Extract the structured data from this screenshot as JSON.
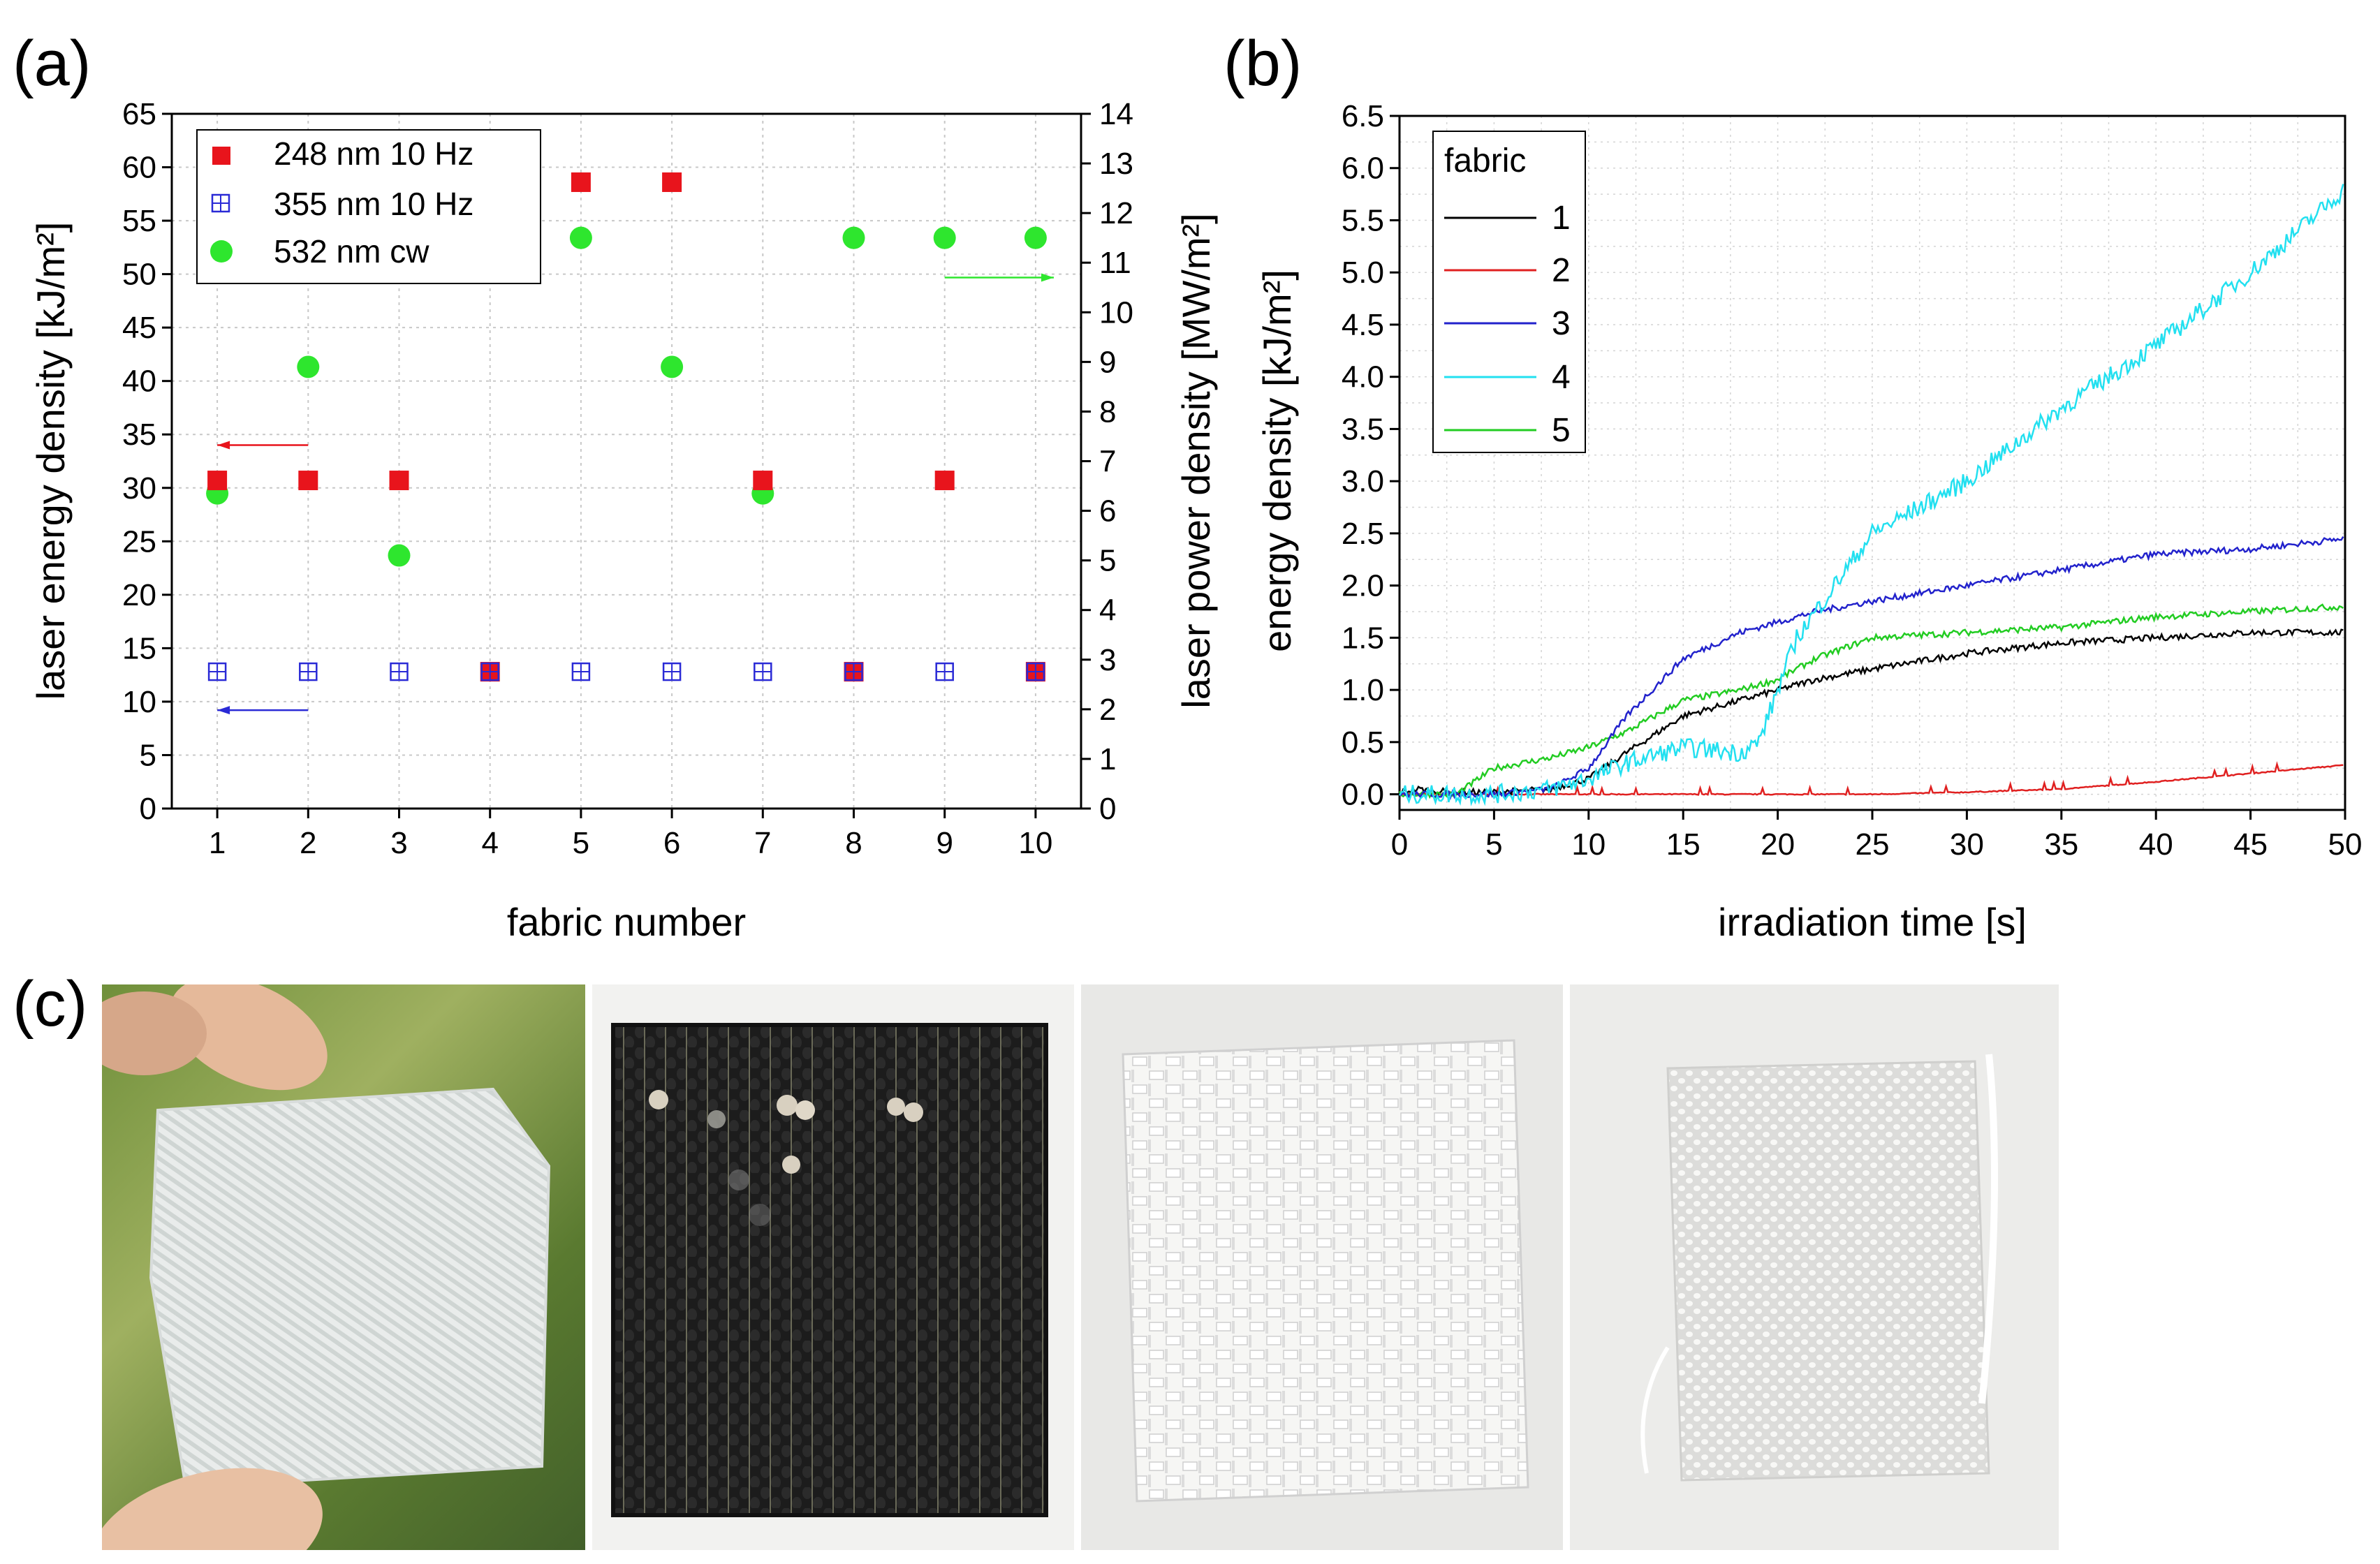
{
  "panel_labels": {
    "a": "(a)",
    "b": "(b)",
    "c": "(c)"
  },
  "colors": {
    "red": "#e8141c",
    "blue": "#2a2ad6",
    "green": "#2ee62e",
    "black": "#000000",
    "cyan": "#22e0f0",
    "line_red": "#e02020",
    "line_blue": "#2222cc",
    "line_green": "#22cc22"
  },
  "chart_data": [
    {
      "type": "scatter",
      "panel": "(a)",
      "xlabel": "fabric number",
      "ylabel_left": "laser energy density [kJ/m²]",
      "ylabel_right": "laser power density [MW/m²]",
      "xlim": [
        0.5,
        10.5
      ],
      "ylim_left": [
        0,
        65
      ],
      "ylim_right": [
        0,
        14
      ],
      "xticks": [
        "1",
        "2",
        "3",
        "4",
        "5",
        "6",
        "7",
        "8",
        "9",
        "10"
      ],
      "yticks_left": [
        "0",
        "5",
        "10",
        "15",
        "20",
        "25",
        "30",
        "35",
        "40",
        "45",
        "50",
        "55",
        "60",
        "65"
      ],
      "yticks_right": [
        "0",
        "1",
        "2",
        "3",
        "4",
        "5",
        "6",
        "7",
        "8",
        "9",
        "10",
        "11",
        "12",
        "13",
        "14"
      ],
      "grid": true,
      "legend_position": "top-left",
      "series": [
        {
          "name": "248 nm 10 Hz",
          "axis": "left",
          "marker": "square",
          "color": "#e8141c",
          "x": [
            1,
            2,
            3,
            4,
            5,
            6,
            7,
            8,
            9,
            10
          ],
          "y": [
            30.7,
            30.7,
            30.7,
            12.8,
            58.6,
            58.6,
            30.7,
            12.8,
            30.7,
            12.8
          ]
        },
        {
          "name": "355 nm 10 Hz",
          "axis": "left",
          "marker": "crossed-square",
          "color": "#2a2ad6",
          "x": [
            1,
            2,
            3,
            4,
            5,
            6,
            7,
            8,
            9,
            10
          ],
          "y": [
            12.8,
            12.8,
            12.8,
            12.8,
            12.8,
            12.8,
            12.8,
            12.8,
            12.8,
            12.8
          ]
        },
        {
          "name": "532 nm cw",
          "axis": "right",
          "marker": "circle",
          "color": "#2ee62e",
          "x": [
            1,
            2,
            3,
            5,
            6,
            7,
            8,
            9,
            10
          ],
          "y": [
            6.35,
            8.9,
            5.1,
            11.5,
            8.9,
            6.35,
            11.5,
            11.5,
            11.5
          ]
        }
      ],
      "annotations": [
        {
          "type": "arrow",
          "direction": "left",
          "from_x": 2,
          "to_x": 1,
          "y": 34,
          "axis": "left",
          "color": "#e8141c"
        },
        {
          "type": "arrow",
          "direction": "left",
          "from_x": 2,
          "to_x": 1,
          "y": 9.2,
          "axis": "left",
          "color": "#2a2ad6"
        },
        {
          "type": "arrow",
          "direction": "right",
          "from_x": 9,
          "to_x": 10.2,
          "y": 10.7,
          "axis": "right",
          "color": "#2ee62e"
        }
      ]
    },
    {
      "type": "line",
      "panel": "(b)",
      "xlabel": "irradiation time [s]",
      "ylabel": "energy density [kJ/m²]",
      "xlim": [
        0,
        50
      ],
      "ylim": [
        -0.15,
        6.5
      ],
      "xticks": [
        "0",
        "5",
        "10",
        "15",
        "20",
        "25",
        "30",
        "35",
        "40",
        "45",
        "50"
      ],
      "yticks": [
        "0.0",
        "0.5",
        "1.0",
        "1.5",
        "2.0",
        "2.5",
        "3.0",
        "3.5",
        "4.0",
        "4.5",
        "5.0",
        "5.5",
        "6.0",
        "6.5"
      ],
      "grid": true,
      "legend_title": "fabric",
      "legend_position": "top-left",
      "series": [
        {
          "name": "1",
          "color": "#000000",
          "x": [
            0,
            1,
            2,
            3,
            5,
            8,
            10,
            12,
            15,
            18,
            20,
            22,
            25,
            30,
            35,
            40,
            45,
            50
          ],
          "y": [
            0.02,
            0.05,
            0.03,
            0.02,
            0.02,
            0.05,
            0.15,
            0.4,
            0.75,
            0.9,
            1.0,
            1.1,
            1.2,
            1.35,
            1.45,
            1.5,
            1.55,
            1.55
          ]
        },
        {
          "name": "2",
          "color": "#e02020",
          "x": [
            0,
            5,
            10,
            15,
            20,
            25,
            30,
            35,
            40,
            45,
            50
          ],
          "y": [
            0.0,
            0.0,
            0.0,
            0.0,
            0.0,
            0.0,
            0.02,
            0.05,
            0.12,
            0.2,
            0.28
          ]
        },
        {
          "name": "3",
          "color": "#2222cc",
          "x": [
            0,
            5,
            8,
            10,
            12,
            15,
            18,
            20,
            22,
            25,
            30,
            35,
            40,
            45,
            50
          ],
          "y": [
            0.0,
            0.0,
            0.05,
            0.25,
            0.75,
            1.3,
            1.55,
            1.65,
            1.75,
            1.85,
            2.0,
            2.15,
            2.3,
            2.35,
            2.45
          ]
        },
        {
          "name": "4",
          "color": "#22e0f0",
          "x": [
            0,
            5,
            8,
            10,
            12,
            15,
            18,
            19,
            20,
            21,
            23,
            25,
            30,
            35,
            40,
            45,
            50
          ],
          "y": [
            0.0,
            0.0,
            0.05,
            0.15,
            0.3,
            0.45,
            0.4,
            0.5,
            1.0,
            1.5,
            2.0,
            2.5,
            3.0,
            3.7,
            4.3,
            5.0,
            5.8
          ]
        },
        {
          "name": "5",
          "color": "#22cc22",
          "x": [
            0,
            3,
            5,
            8,
            10,
            12,
            15,
            18,
            20,
            22,
            25,
            30,
            35,
            40,
            45,
            50
          ],
          "y": [
            0.0,
            0.0,
            0.25,
            0.35,
            0.45,
            0.6,
            0.9,
            1.0,
            1.1,
            1.3,
            1.5,
            1.55,
            1.6,
            1.7,
            1.75,
            1.8
          ]
        }
      ]
    }
  ],
  "photos": [
    {
      "name": "white twill fabric held in fingers"
    },
    {
      "name": "black fabric with laser spots"
    },
    {
      "name": "white loose weave fabric"
    },
    {
      "name": "white plain weave fabric"
    }
  ]
}
